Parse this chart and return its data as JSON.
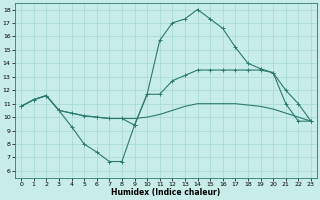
{
  "background_color": "#c8ece8",
  "line_color": "#2d7a6e",
  "xlabel": "Humidex (Indice chaleur)",
  "xlim": [
    -0.5,
    23.5
  ],
  "ylim": [
    5.5,
    18.5
  ],
  "xticks": [
    0,
    1,
    2,
    3,
    4,
    5,
    6,
    7,
    8,
    9,
    10,
    11,
    12,
    13,
    14,
    15,
    16,
    17,
    18,
    19,
    20,
    21,
    22,
    23
  ],
  "yticks": [
    6,
    7,
    8,
    9,
    10,
    11,
    12,
    13,
    14,
    15,
    16,
    17,
    18
  ],
  "line1_x": [
    0,
    1,
    2,
    3,
    4,
    5,
    6,
    7,
    8,
    9,
    10,
    11,
    12,
    13,
    14,
    15,
    16,
    17,
    18,
    19,
    20,
    21,
    22,
    23
  ],
  "line1_y": [
    10.8,
    11.3,
    11.6,
    10.5,
    9.3,
    8.0,
    7.4,
    6.7,
    6.7,
    9.4,
    11.7,
    11.7,
    12.7,
    13.1,
    13.5,
    13.5,
    13.5,
    13.5,
    13.5,
    13.5,
    13.3,
    11.0,
    9.7,
    9.7
  ],
  "line2_x": [
    0,
    1,
    2,
    3,
    4,
    5,
    6,
    7,
    8,
    9,
    10,
    11,
    12,
    13,
    14,
    15,
    16,
    17,
    18,
    19,
    20,
    21,
    22,
    23
  ],
  "line2_y": [
    10.8,
    11.3,
    11.6,
    10.5,
    10.3,
    10.1,
    10.0,
    9.9,
    9.9,
    9.9,
    10.0,
    10.2,
    10.5,
    10.8,
    11.0,
    11.0,
    11.0,
    11.0,
    10.9,
    10.8,
    10.6,
    10.3,
    10.0,
    9.7
  ],
  "line3_x": [
    0,
    1,
    2,
    3,
    4,
    5,
    6,
    7,
    8,
    9,
    10,
    11,
    12,
    13,
    14,
    15,
    16,
    17,
    18,
    19,
    20,
    21,
    22,
    23
  ],
  "line3_y": [
    10.8,
    11.3,
    11.6,
    10.5,
    10.3,
    10.1,
    10.0,
    9.9,
    9.9,
    9.4,
    11.7,
    15.7,
    17.0,
    17.3,
    18.0,
    17.3,
    16.6,
    15.2,
    14.0,
    13.6,
    13.3,
    12.0,
    11.0,
    9.7
  ]
}
